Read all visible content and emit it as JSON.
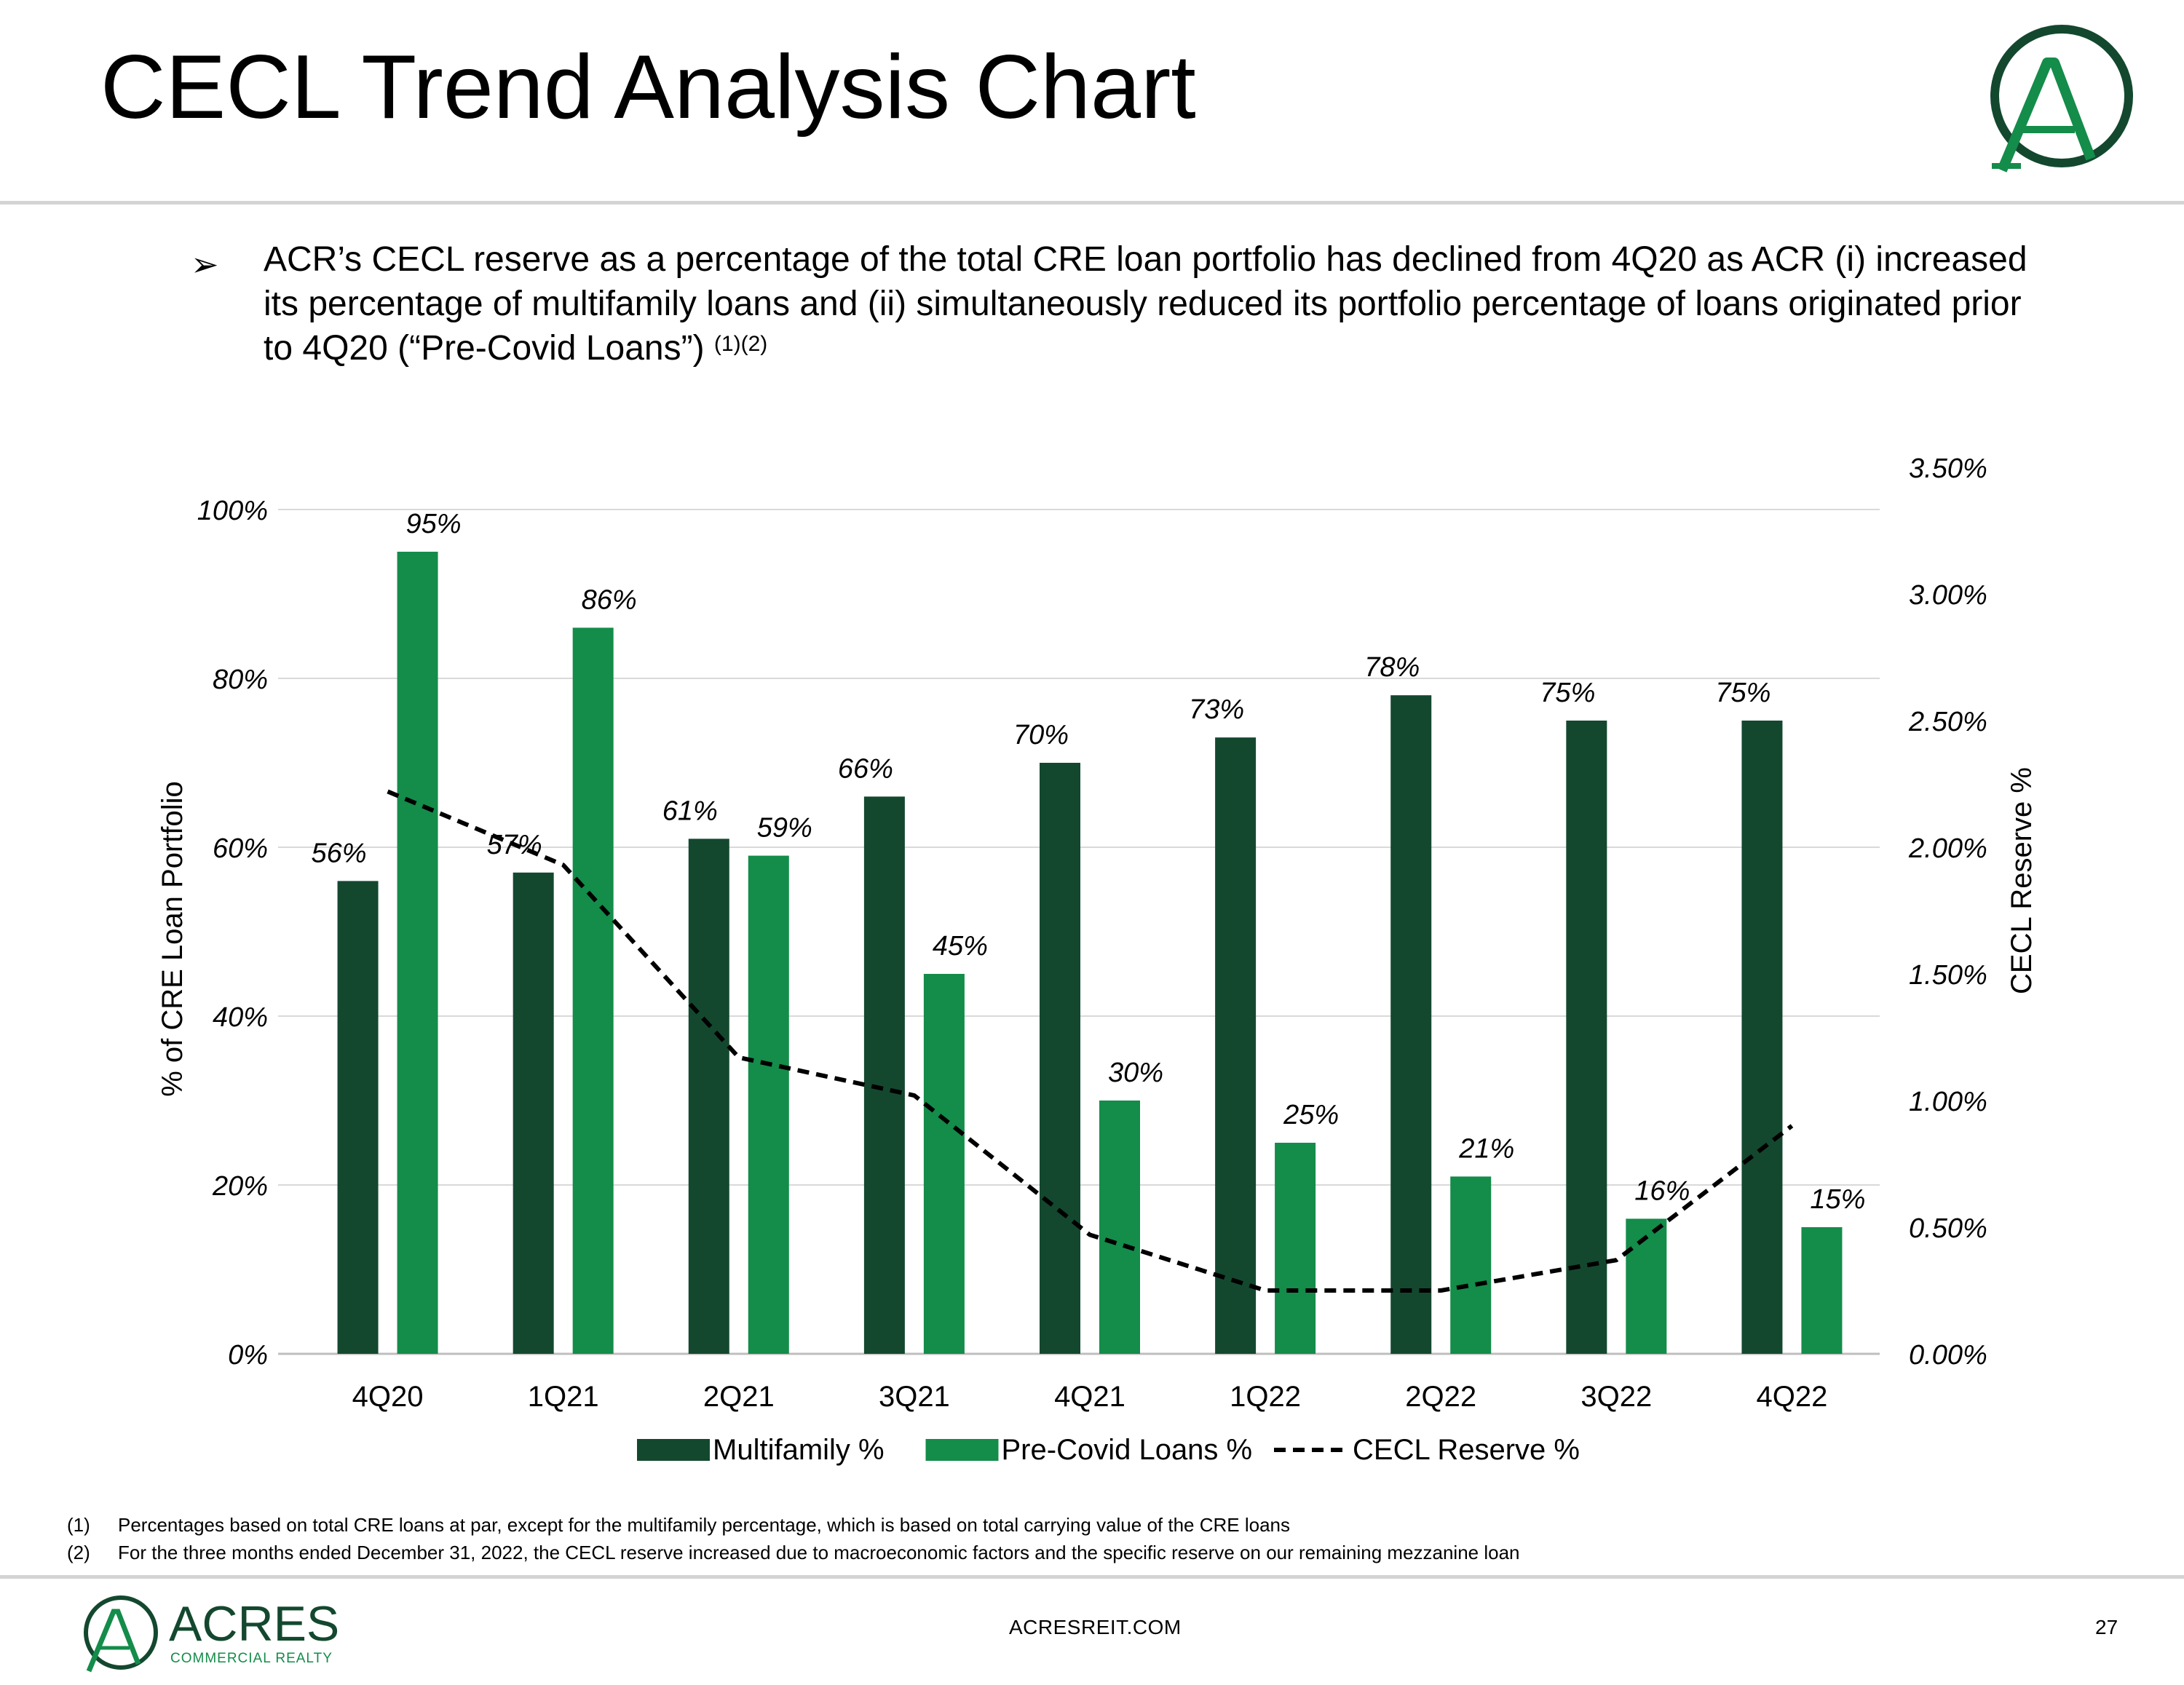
{
  "header": {
    "title": "CECL Trend Analysis Chart"
  },
  "bullet": {
    "text": "ACR’s CECL reserve as a percentage of the total CRE loan portfolio has declined from 4Q20 as ACR (i) increased its percentage of multifamily loans and (ii) simultaneously reduced its portfolio percentage of loans originated prior to 4Q20 (“Pre-Covid Loans”)",
    "superscript": "(1)(2)"
  },
  "chart_data": {
    "type": "bar",
    "categories": [
      "4Q20",
      "1Q21",
      "2Q21",
      "3Q21",
      "4Q21",
      "1Q22",
      "2Q22",
      "3Q22",
      "4Q22"
    ],
    "series": [
      {
        "name": "Multifamily %",
        "kind": "bar",
        "axis": "left",
        "color": "#13482f",
        "values": [
          56,
          57,
          61,
          66,
          70,
          73,
          78,
          75,
          75
        ],
        "labels": [
          "56%",
          "57%",
          "61%",
          "66%",
          "70%",
          "73%",
          "78%",
          "75%",
          "75%"
        ]
      },
      {
        "name": "Pre-Covid Loans %",
        "kind": "bar",
        "axis": "left",
        "color": "#148c4a",
        "values": [
          95,
          86,
          59,
          45,
          30,
          25,
          21,
          16,
          15
        ],
        "labels": [
          "95%",
          "86%",
          "59%",
          "45%",
          "30%",
          "25%",
          "21%",
          "16%",
          "15%"
        ]
      },
      {
        "name": "CECL Reserve %",
        "kind": "line",
        "style": "dashed",
        "axis": "right",
        "color": "#000000",
        "values": [
          2.22,
          1.93,
          1.17,
          1.02,
          0.47,
          0.25,
          0.25,
          0.37,
          0.9
        ]
      }
    ],
    "ylabel": "% of CRE Loan Portfolio",
    "ylim": [
      0,
      100
    ],
    "yticks": [
      "0%",
      "20%",
      "40%",
      "60%",
      "80%",
      "100%"
    ],
    "y2label": "CECL Reserve %",
    "y2lim": [
      0,
      3.5
    ],
    "y2ticks": [
      "0.00%",
      "0.50%",
      "1.00%",
      "1.50%",
      "2.00%",
      "2.50%",
      "3.00%",
      "3.50%"
    ],
    "grid": true,
    "legend": "bottom"
  },
  "footnotes": [
    {
      "num": "(1)",
      "text": "Percentages based on total CRE loans at par, except for the multifamily percentage, which is based on total carrying value of the CRE loans"
    },
    {
      "num": "(2)",
      "text": "For the three months ended December 31, 2022, the CECL reserve increased due to macroeconomic factors and the specific reserve on our remaining mezzanine loan"
    }
  ],
  "footer": {
    "brand_name": "ACRES",
    "brand_sub": "COMMERCIAL REALTY",
    "url": "ACRESREIT.COM",
    "page": "27"
  },
  "colors": {
    "brand_dark": "#13482f",
    "brand_green": "#148c4a",
    "rule": "#d4d4d4"
  }
}
